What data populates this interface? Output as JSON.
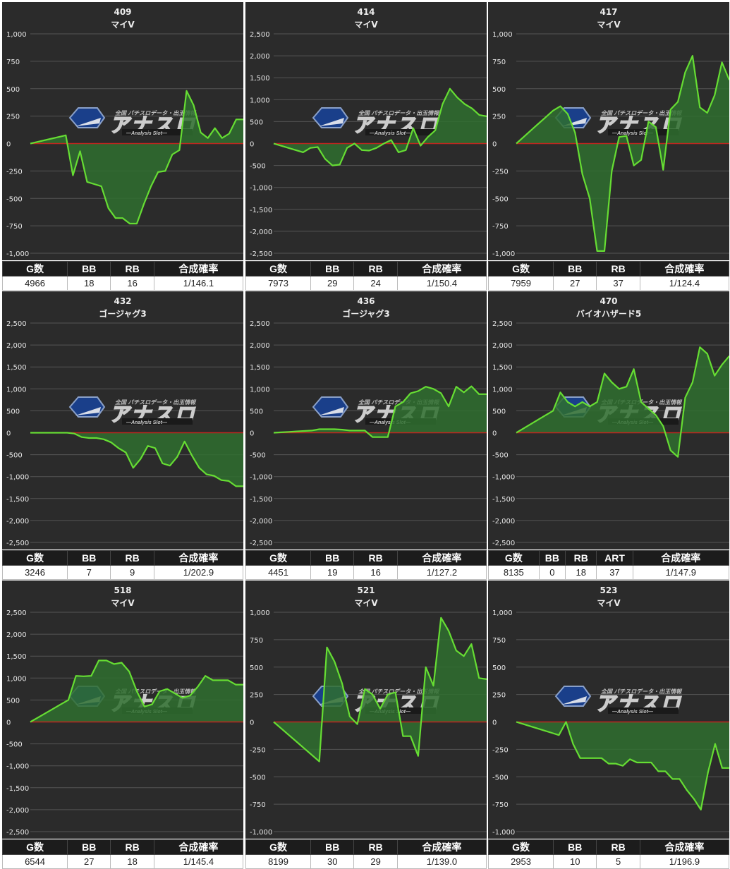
{
  "watermark": {
    "top": "全国 パチスロデータ・出玉情報",
    "brand": "アナスロ",
    "sub": "—Analysis Slot—"
  },
  "colors": {
    "background": "#2b2b2b",
    "line": "#66dd33",
    "fill": "#2f6e2f",
    "zero_line": "#c0261f",
    "grid": "#555555"
  },
  "chart_data": [
    {
      "type": "area",
      "number": "409",
      "name": "マイV",
      "yticks": [
        "1,000",
        "750",
        "500",
        "250",
        "0",
        "-250",
        "-500",
        "-750",
        "-1,000"
      ],
      "ylim": [
        -1000,
        1000
      ],
      "values": [
        0,
        15,
        30,
        45,
        60,
        75,
        -290,
        -70,
        -350,
        -370,
        -390,
        -590,
        -680,
        -680,
        -730,
        -730,
        -550,
        -390,
        -260,
        -250,
        -100,
        -60,
        480,
        350,
        100,
        50,
        140,
        50,
        90,
        220,
        220
      ],
      "stats": {
        "headers": [
          "G数",
          "BB",
          "RB",
          "合成確率"
        ],
        "values": [
          "4966",
          "18",
          "16",
          "1/146.1"
        ]
      }
    },
    {
      "type": "area",
      "number": "414",
      "name": "マイV",
      "yticks": [
        "2,500",
        "2,000",
        "1,500",
        "1,000",
        "500",
        "0",
        "-500",
        "-1,000",
        "-1,500",
        "-2,000",
        "-2,500"
      ],
      "ylim": [
        -2500,
        2500
      ],
      "values": [
        0,
        -50,
        -100,
        -150,
        -200,
        -100,
        -80,
        -350,
        -500,
        -480,
        -100,
        0,
        -150,
        -160,
        -100,
        0,
        80,
        -200,
        -150,
        350,
        -50,
        150,
        300,
        900,
        1250,
        1050,
        900,
        800,
        650,
        620
      ],
      "stats": {
        "headers": [
          "G数",
          "BB",
          "RB",
          "合成確率"
        ],
        "values": [
          "7973",
          "29",
          "24",
          "1/150.4"
        ]
      }
    },
    {
      "type": "area",
      "number": "417",
      "name": "マイV",
      "yticks": [
        "1,000",
        "750",
        "500",
        "250",
        "0",
        "-250",
        "-500",
        "-750",
        "-1,000"
      ],
      "ylim": [
        -1000,
        1000
      ],
      "values": [
        0,
        60,
        120,
        180,
        240,
        300,
        340,
        270,
        100,
        -280,
        -500,
        -980,
        -980,
        -250,
        60,
        70,
        -200,
        -150,
        200,
        150,
        -240,
        310,
        380,
        650,
        800,
        330,
        280,
        440,
        740,
        580
      ],
      "stats": {
        "headers": [
          "G数",
          "BB",
          "RB",
          "合成確率"
        ],
        "values": [
          "7959",
          "27",
          "37",
          "1/124.4"
        ]
      }
    },
    {
      "type": "area",
      "number": "432",
      "name": "ゴージャグ3",
      "yticks": [
        "2,500",
        "2,000",
        "1,500",
        "1,000",
        "500",
        "0",
        "-500",
        "-1,000",
        "-1,500",
        "-2,000",
        "-2,500"
      ],
      "ylim": [
        -2500,
        2500
      ],
      "values": [
        0,
        0,
        0,
        0,
        0,
        0,
        -20,
        -100,
        -120,
        -120,
        -150,
        -220,
        -350,
        -450,
        -800,
        -600,
        -300,
        -350,
        -700,
        -750,
        -550,
        -200,
        -520,
        -800,
        -950,
        -980,
        -1080,
        -1100,
        -1220,
        -1220
      ],
      "stats": {
        "headers": [
          "G数",
          "BB",
          "RB",
          "合成確率"
        ],
        "values": [
          "3246",
          "7",
          "9",
          "1/202.9"
        ]
      }
    },
    {
      "type": "area",
      "number": "436",
      "name": "ゴージャグ3",
      "yticks": [
        "2,500",
        "2,000",
        "1,500",
        "1,000",
        "500",
        "0",
        "-500",
        "-1,000",
        "-1,500",
        "-2,000",
        "-2,500"
      ],
      "ylim": [
        -2500,
        2500
      ],
      "values": [
        0,
        10,
        20,
        30,
        40,
        50,
        80,
        80,
        80,
        70,
        50,
        50,
        50,
        -100,
        -100,
        -100,
        600,
        700,
        900,
        950,
        1050,
        1000,
        900,
        600,
        1050,
        920,
        1060,
        880,
        880
      ],
      "stats": {
        "headers": [
          "G数",
          "BB",
          "RB",
          "合成確率"
        ],
        "values": [
          "4451",
          "19",
          "16",
          "1/127.2"
        ]
      }
    },
    {
      "type": "area",
      "number": "470",
      "name": "バイオハザード5",
      "yticks": [
        "2,500",
        "2,000",
        "1,500",
        "1,000",
        "500",
        "0",
        "-500",
        "-1,000",
        "-1,500",
        "-2,000",
        "-2,500"
      ],
      "ylim": [
        -2500,
        2500
      ],
      "values": [
        0,
        100,
        200,
        300,
        400,
        500,
        920,
        700,
        600,
        700,
        600,
        700,
        1350,
        1150,
        1000,
        1050,
        1450,
        700,
        550,
        400,
        150,
        -400,
        -550,
        800,
        1150,
        1950,
        1800,
        1300,
        1550,
        1750
      ],
      "stats": {
        "headers": [
          "G数",
          "BB",
          "RB",
          "ART",
          "合成確率"
        ],
        "values": [
          "8135",
          "0",
          "18",
          "37",
          "1/147.9"
        ]
      }
    },
    {
      "type": "area",
      "number": "518",
      "name": "マイV",
      "yticks": [
        "2,500",
        "2,000",
        "1,500",
        "1,000",
        "500",
        "0",
        "-500",
        "-1,000",
        "-1,500",
        "-2,000",
        "-2,500"
      ],
      "ylim": [
        -2500,
        2500
      ],
      "values": [
        0,
        100,
        200,
        300,
        400,
        500,
        1050,
        1040,
        1050,
        1400,
        1400,
        1320,
        1350,
        1150,
        700,
        350,
        400,
        700,
        750,
        650,
        550,
        600,
        800,
        1050,
        950,
        950,
        950,
        850,
        850
      ],
      "stats": {
        "headers": [
          "G数",
          "BB",
          "RB",
          "合成確率"
        ],
        "values": [
          "6544",
          "27",
          "18",
          "1/145.4"
        ]
      }
    },
    {
      "type": "area",
      "number": "521",
      "name": "マイV",
      "yticks": [
        "1,000",
        "750",
        "500",
        "250",
        "0",
        "-250",
        "-500",
        "-750",
        "-1,000"
      ],
      "ylim": [
        -1000,
        1000
      ],
      "values": [
        0,
        -60,
        -120,
        -180,
        -240,
        -300,
        -360,
        680,
        550,
        350,
        50,
        -20,
        300,
        250,
        120,
        250,
        270,
        -130,
        -130,
        -310,
        500,
        330,
        950,
        830,
        650,
        600,
        710,
        400,
        390
      ],
      "stats": {
        "headers": [
          "G数",
          "BB",
          "RB",
          "合成確率"
        ],
        "values": [
          "8199",
          "30",
          "29",
          "1/139.0"
        ]
      }
    },
    {
      "type": "area",
      "number": "523",
      "name": "マイV",
      "yticks": [
        "1,000",
        "750",
        "500",
        "250",
        "0",
        "-250",
        "-500",
        "-750",
        "-1,000"
      ],
      "ylim": [
        -1000,
        1000
      ],
      "values": [
        0,
        -20,
        -40,
        -60,
        -80,
        -100,
        -120,
        0,
        -200,
        -330,
        -330,
        -330,
        -330,
        -380,
        -380,
        -400,
        -340,
        -370,
        -370,
        -370,
        -450,
        -450,
        -520,
        -520,
        -620,
        -700,
        -800,
        -460,
        -200,
        -420,
        -420
      ],
      "stats": {
        "headers": [
          "G数",
          "BB",
          "RB",
          "合成確率"
        ],
        "values": [
          "2953",
          "10",
          "5",
          "1/196.9"
        ]
      }
    }
  ]
}
